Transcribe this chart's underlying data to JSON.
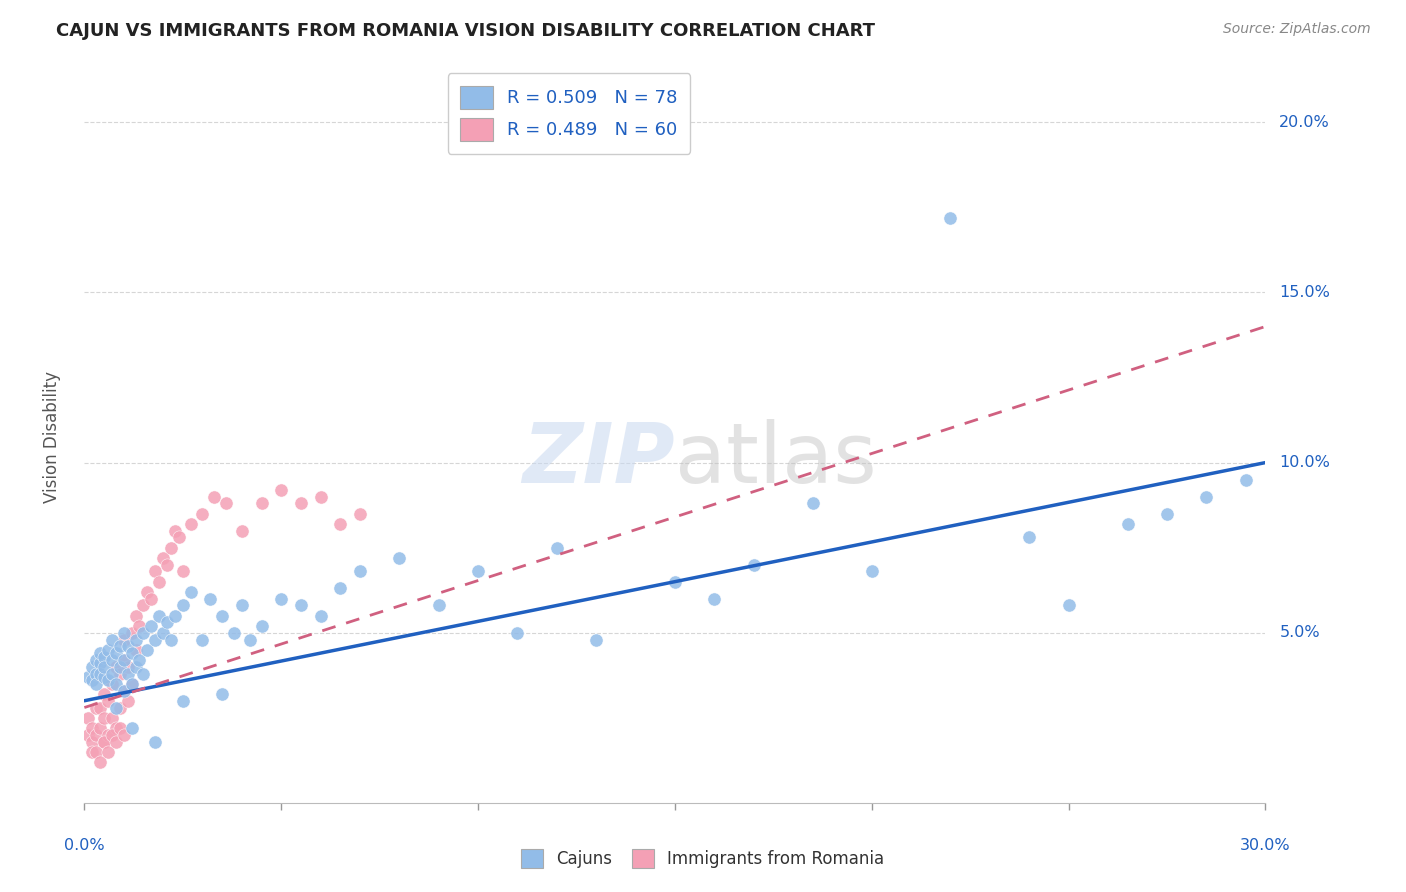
{
  "title": "CAJUN VS IMMIGRANTS FROM ROMANIA VISION DISABILITY CORRELATION CHART",
  "source": "Source: ZipAtlas.com",
  "ylabel": "Vision Disability",
  "cajun_color": "#92bce8",
  "romania_color": "#f4a0b5",
  "cajun_line_color": "#2060c0",
  "romania_line_color": "#d06080",
  "background_color": "#ffffff",
  "watermark_zip": "ZIP",
  "watermark_atlas": "atlas",
  "xlim": [
    0.0,
    0.3
  ],
  "ylim": [
    0.0,
    0.215
  ],
  "cajun_N": 78,
  "romania_N": 60,
  "cajun_R": 0.509,
  "romania_R": 0.489,
  "cajun_line_x0": 0.0,
  "cajun_line_x1": 0.3,
  "cajun_line_y0": 0.03,
  "cajun_line_y1": 0.1,
  "romania_line_x0": 0.0,
  "romania_line_x1": 0.3,
  "romania_line_y0": 0.028,
  "romania_line_y1": 0.14,
  "ytick_positions": [
    0.05,
    0.1,
    0.15,
    0.2
  ],
  "ytick_labels": [
    "5.0%",
    "10.0%",
    "15.0%",
    "20.0%"
  ],
  "xtick_labels_left": "0.0%",
  "xtick_labels_right": "30.0%",
  "cajun_x": [
    0.001,
    0.002,
    0.002,
    0.003,
    0.003,
    0.003,
    0.004,
    0.004,
    0.004,
    0.005,
    0.005,
    0.005,
    0.006,
    0.006,
    0.007,
    0.007,
    0.007,
    0.008,
    0.008,
    0.009,
    0.009,
    0.01,
    0.01,
    0.01,
    0.011,
    0.011,
    0.012,
    0.012,
    0.013,
    0.013,
    0.014,
    0.015,
    0.015,
    0.016,
    0.017,
    0.018,
    0.019,
    0.02,
    0.021,
    0.022,
    0.023,
    0.025,
    0.027,
    0.03,
    0.032,
    0.035,
    0.038,
    0.04,
    0.042,
    0.045,
    0.05,
    0.055,
    0.06,
    0.065,
    0.07,
    0.08,
    0.09,
    0.1,
    0.11,
    0.12,
    0.13,
    0.15,
    0.16,
    0.17,
    0.185,
    0.2,
    0.22,
    0.24,
    0.25,
    0.265,
    0.275,
    0.285,
    0.295,
    0.008,
    0.012,
    0.018,
    0.025,
    0.035
  ],
  "cajun_y": [
    0.037,
    0.04,
    0.036,
    0.042,
    0.038,
    0.035,
    0.041,
    0.038,
    0.044,
    0.037,
    0.043,
    0.04,
    0.036,
    0.045,
    0.038,
    0.042,
    0.048,
    0.035,
    0.044,
    0.04,
    0.046,
    0.033,
    0.042,
    0.05,
    0.038,
    0.046,
    0.035,
    0.044,
    0.04,
    0.048,
    0.042,
    0.038,
    0.05,
    0.045,
    0.052,
    0.048,
    0.055,
    0.05,
    0.053,
    0.048,
    0.055,
    0.058,
    0.062,
    0.048,
    0.06,
    0.055,
    0.05,
    0.058,
    0.048,
    0.052,
    0.06,
    0.058,
    0.055,
    0.063,
    0.068,
    0.072,
    0.058,
    0.068,
    0.05,
    0.075,
    0.048,
    0.065,
    0.06,
    0.07,
    0.088,
    0.068,
    0.172,
    0.078,
    0.058,
    0.082,
    0.085,
    0.09,
    0.095,
    0.028,
    0.022,
    0.018,
    0.03,
    0.032
  ],
  "romania_x": [
    0.001,
    0.001,
    0.002,
    0.002,
    0.003,
    0.003,
    0.004,
    0.004,
    0.005,
    0.005,
    0.005,
    0.006,
    0.006,
    0.007,
    0.007,
    0.008,
    0.008,
    0.009,
    0.009,
    0.01,
    0.01,
    0.01,
    0.011,
    0.012,
    0.012,
    0.013,
    0.013,
    0.014,
    0.015,
    0.016,
    0.017,
    0.018,
    0.019,
    0.02,
    0.021,
    0.022,
    0.023,
    0.024,
    0.025,
    0.027,
    0.03,
    0.033,
    0.036,
    0.04,
    0.045,
    0.05,
    0.055,
    0.06,
    0.065,
    0.07,
    0.002,
    0.003,
    0.004,
    0.005,
    0.006,
    0.007,
    0.008,
    0.009,
    0.01,
    0.011
  ],
  "romania_y": [
    0.02,
    0.025,
    0.018,
    0.022,
    0.02,
    0.028,
    0.022,
    0.028,
    0.018,
    0.025,
    0.032,
    0.02,
    0.03,
    0.025,
    0.035,
    0.022,
    0.04,
    0.028,
    0.038,
    0.033,
    0.042,
    0.048,
    0.04,
    0.05,
    0.035,
    0.045,
    0.055,
    0.052,
    0.058,
    0.062,
    0.06,
    0.068,
    0.065,
    0.072,
    0.07,
    0.075,
    0.08,
    0.078,
    0.068,
    0.082,
    0.085,
    0.09,
    0.088,
    0.08,
    0.088,
    0.092,
    0.088,
    0.09,
    0.082,
    0.085,
    0.015,
    0.015,
    0.012,
    0.018,
    0.015,
    0.02,
    0.018,
    0.022,
    0.02,
    0.03
  ]
}
